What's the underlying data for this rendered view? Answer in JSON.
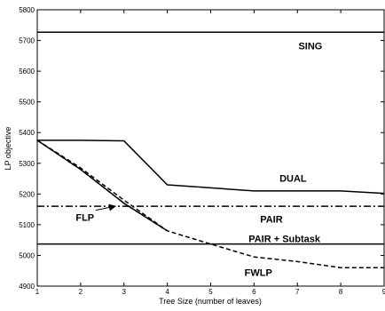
{
  "chart_data": {
    "type": "line",
    "title": "",
    "xlabel": "Tree Size (number of leaves)",
    "ylabel": "LP objective",
    "xlim": [
      1,
      9
    ],
    "ylim": [
      4900,
      5800
    ],
    "xticks": [
      1,
      2,
      3,
      4,
      5,
      6,
      7,
      8,
      9
    ],
    "yticks": [
      4900,
      5000,
      5100,
      5200,
      5300,
      5400,
      5500,
      5600,
      5700,
      5800
    ],
    "grid": false,
    "series": [
      {
        "name": "SING",
        "style": "solid",
        "x": [
          1,
          9
        ],
        "y": [
          5727,
          5727
        ]
      },
      {
        "name": "DUAL",
        "style": "solid",
        "x": [
          1,
          2,
          3,
          4,
          5,
          6,
          7,
          8,
          9
        ],
        "y": [
          5375,
          5375,
          5373,
          5230,
          5220,
          5210,
          5210,
          5210,
          5202
        ]
      },
      {
        "name": "PAIR",
        "style": "dashdot",
        "x": [
          1,
          9
        ],
        "y": [
          5160,
          5160
        ]
      },
      {
        "name": "PAIR + Subtask",
        "style": "solid",
        "x": [
          1,
          9
        ],
        "y": [
          5037,
          5037
        ]
      },
      {
        "name": "FLP",
        "style": "dashed",
        "x": [
          1,
          2,
          3,
          4
        ],
        "y": [
          5375,
          5285,
          5180,
          5080
        ]
      },
      {
        "name": "FWLP",
        "style": "dashed",
        "x": [
          1,
          2,
          3,
          4,
          5,
          6,
          7,
          8,
          9
        ],
        "y": [
          5375,
          5280,
          5170,
          5080,
          5037,
          4995,
          4980,
          4960,
          4960
        ]
      },
      {
        "name": "",
        "style": "solid",
        "x": [
          1,
          2,
          3,
          4
        ],
        "y": [
          5375,
          5280,
          5170,
          5080
        ]
      }
    ],
    "annotations": [
      {
        "text": "SING",
        "x": 7.3,
        "y": 5683
      },
      {
        "text": "DUAL",
        "x": 6.9,
        "y": 5252
      },
      {
        "text": "PAIR",
        "x": 6.4,
        "y": 5118
      },
      {
        "text": "PAIR + Subtask",
        "x": 6.7,
        "y": 5055
      },
      {
        "text": "FWLP",
        "x": 6.1,
        "y": 4945
      },
      {
        "text": "FLP",
        "x": 2.1,
        "y": 5124,
        "arrow_to": [
          2.8,
          5160
        ]
      }
    ]
  }
}
